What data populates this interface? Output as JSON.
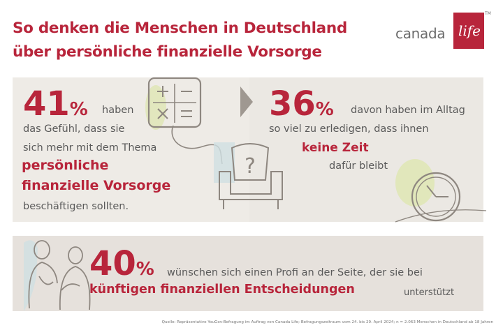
{
  "title": {
    "line1": "So denken die Menschen in Deutschland",
    "line2": "über persönliche finanzielle Vorsorge"
  },
  "logo": {
    "word": "canada",
    "life": "life",
    "tm": "TM"
  },
  "stat_left": {
    "number": "41",
    "pct": "%",
    "line1": "haben",
    "line2": "das Gefühl, dass sie",
    "line3": "sich mehr mit dem Thema",
    "highlight1": "persönliche",
    "highlight2": "finanzielle Vorsorge",
    "line4": "beschäftigen sollten."
  },
  "stat_right": {
    "number": "36",
    "pct": "%",
    "line1": "davon haben im Alltag",
    "line2": "so viel zu erledigen, dass ihnen",
    "highlight": "keine Zeit",
    "line3": "dafür bleibt"
  },
  "stat_bottom": {
    "number": "40",
    "pct": "%",
    "line1": "wünschen sich einen Profi an der Seite, der sie bei",
    "highlight": "künftigen finanziellen Entscheidungen",
    "line2": "unterstützt"
  },
  "footer": "Quelle: Repräsentative YouGov-Befragung im Auftrag von Canada Life; Befragungszeitraum vom 24. bis 29. April 2024; n = 2.063 Menschen in Deutschland ab 18 Jahren",
  "colors": {
    "accent": "#b8253b",
    "panel": "#eeebe6",
    "text": "#5a5a5a",
    "icon_stroke": "#8e8780",
    "icon_green": "#dfe6b4",
    "icon_blue": "#cfe0e2"
  }
}
